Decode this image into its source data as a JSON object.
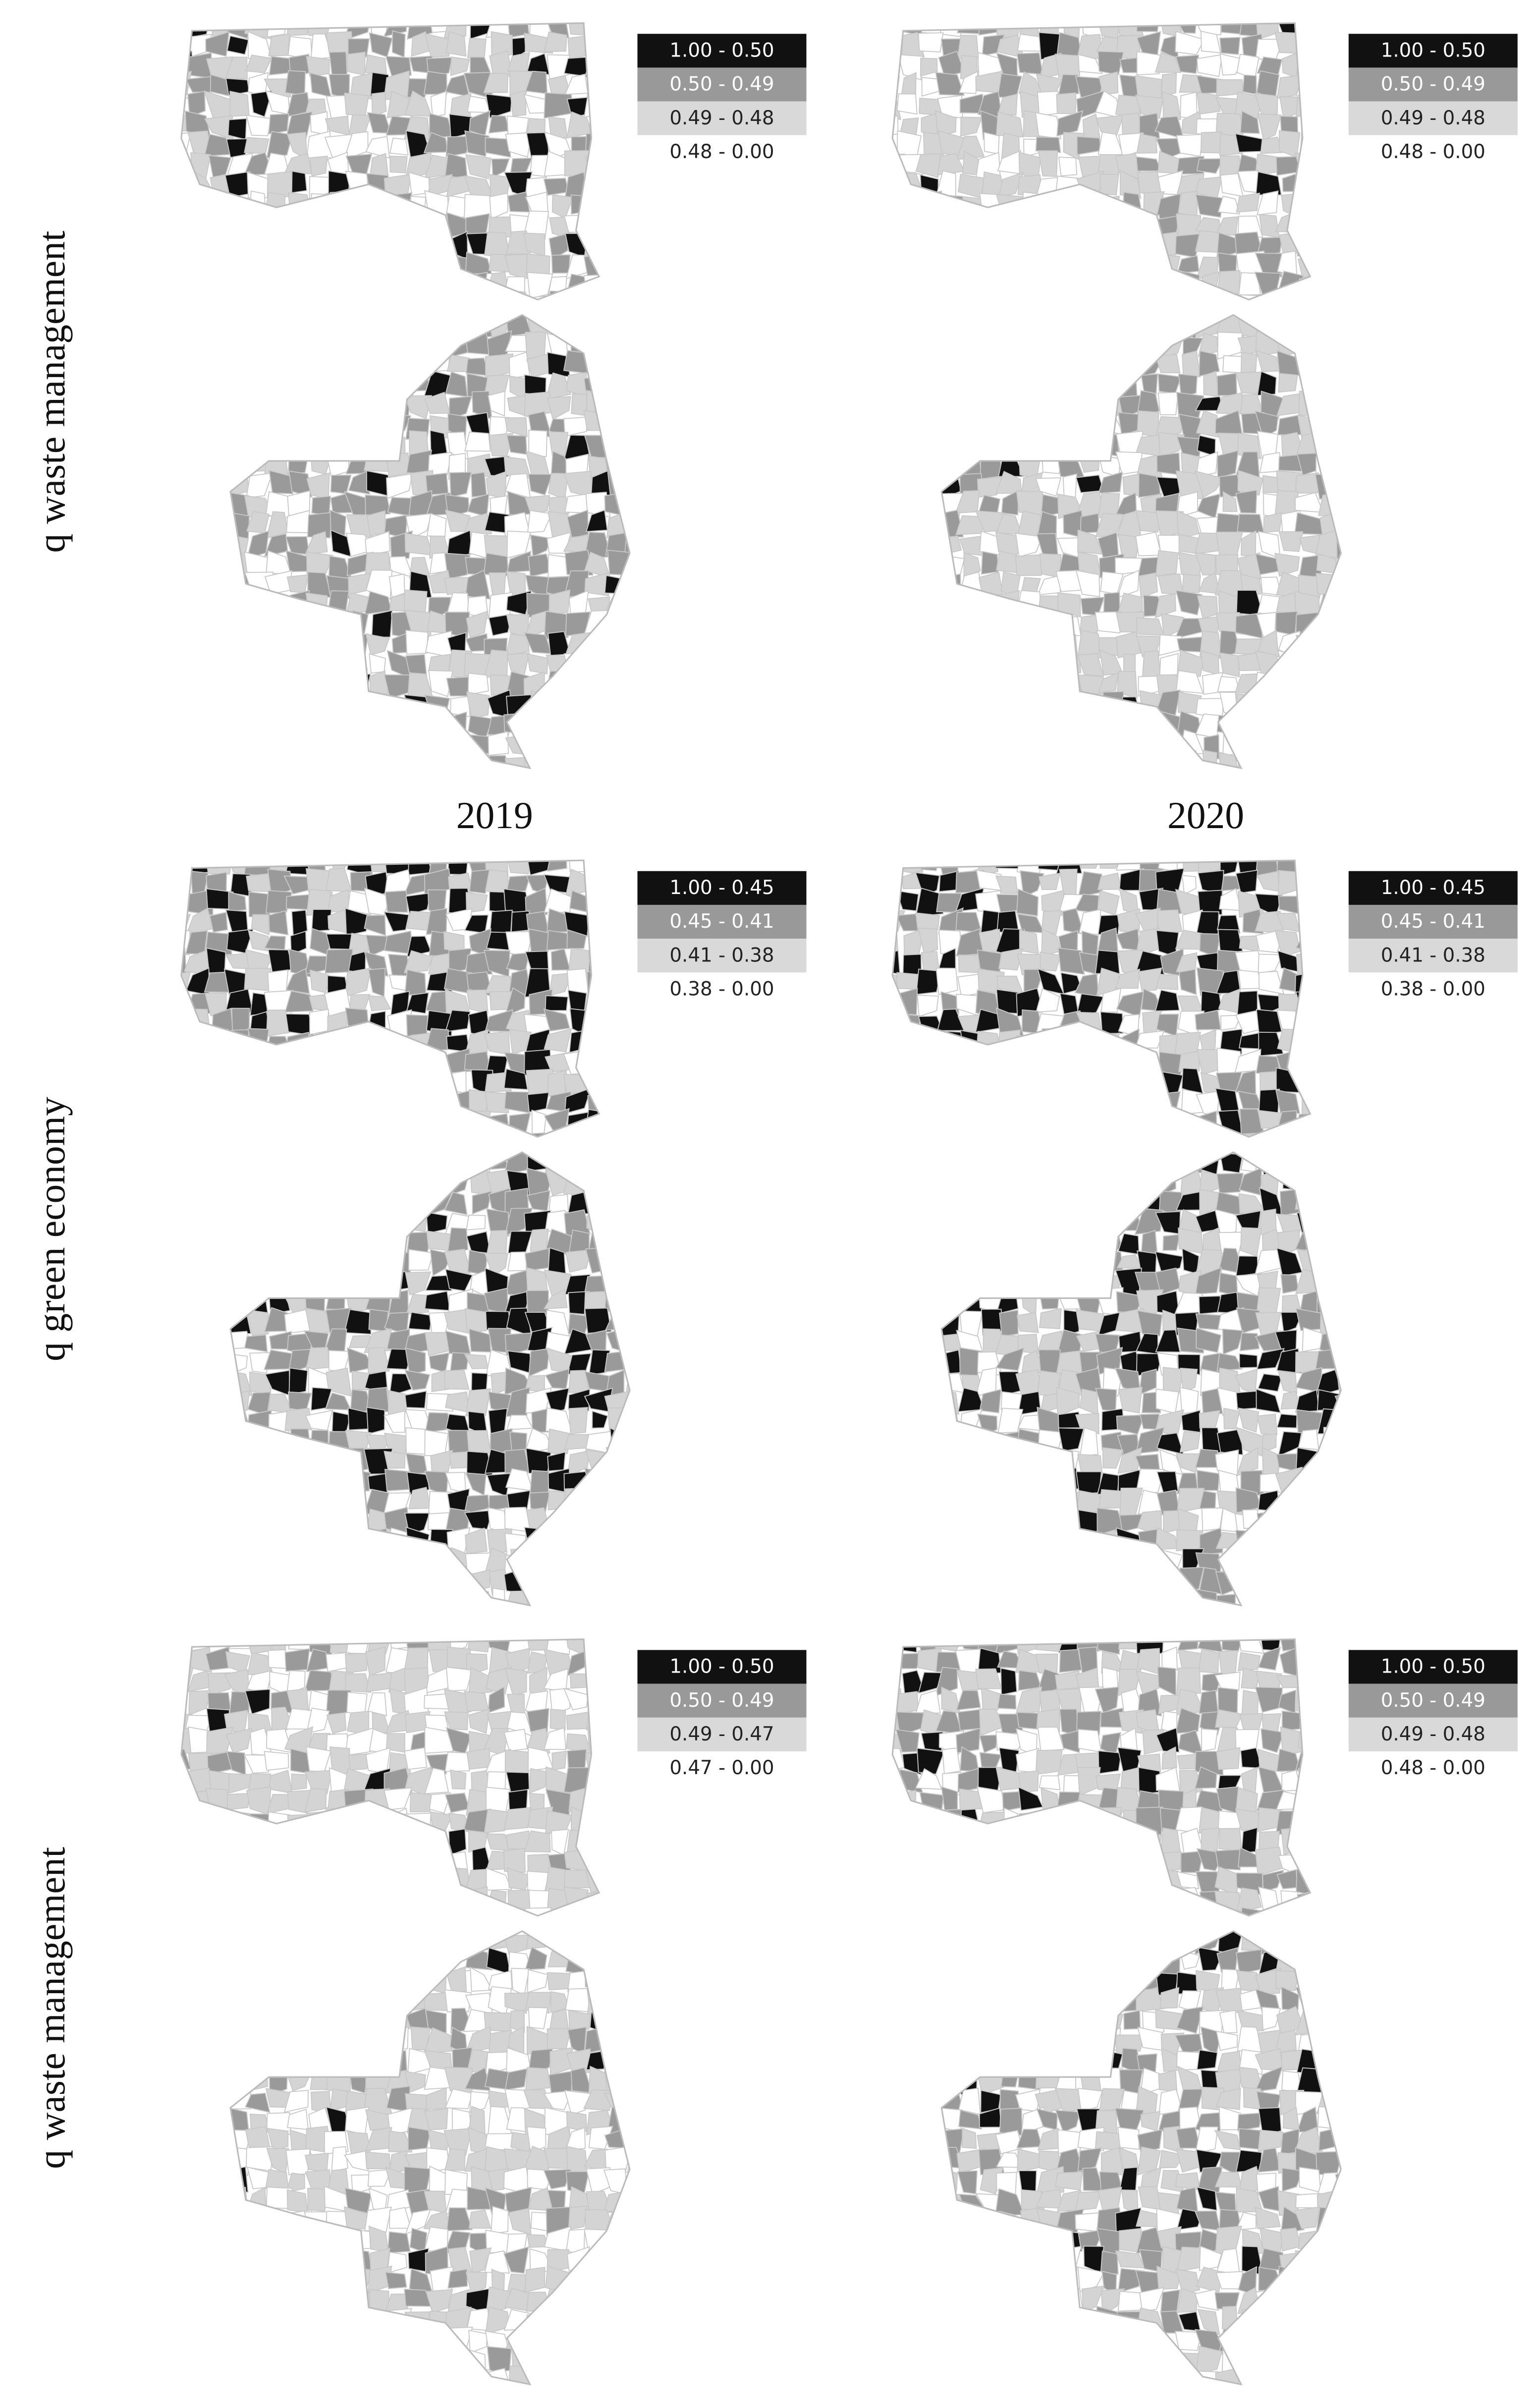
{
  "years": [
    "2019",
    "2020"
  ],
  "rows": [
    {
      "label": "q waste management",
      "maps": [
        {
          "legend": [
            "1.00 -  0.50",
            "0.50 -  0.49",
            "0.49 -  0.48",
            "0.48 -  0.00"
          ]
        },
        {
          "legend": [
            "1.00 -  0.50",
            "0.50 -  0.49",
            "0.49 -  0.48",
            "0.48 -  0.00"
          ]
        }
      ]
    },
    {
      "label": "q green economy",
      "maps": [
        {
          "legend": [
            "1.00 -  0.45",
            "0.45 -  0.41",
            "0.41 -  0.38",
            "0.38 -  0.00"
          ]
        },
        {
          "legend": [
            "1.00 -  0.45",
            "0.45 -  0.41",
            "0.41 -  0.38",
            "0.38 -  0.00"
          ]
        }
      ]
    },
    {
      "label": "q waste management",
      "maps": [
        {
          "legend": [
            "1.00 -  0.50",
            "0.50 -  0.49",
            "0.49 -  0.47",
            "0.47 -  0.00"
          ]
        },
        {
          "legend": [
            "1.00 -  0.50",
            "0.50 -  0.49",
            "0.49 -  0.48",
            "0.48 -  0.00"
          ]
        }
      ]
    }
  ]
}
